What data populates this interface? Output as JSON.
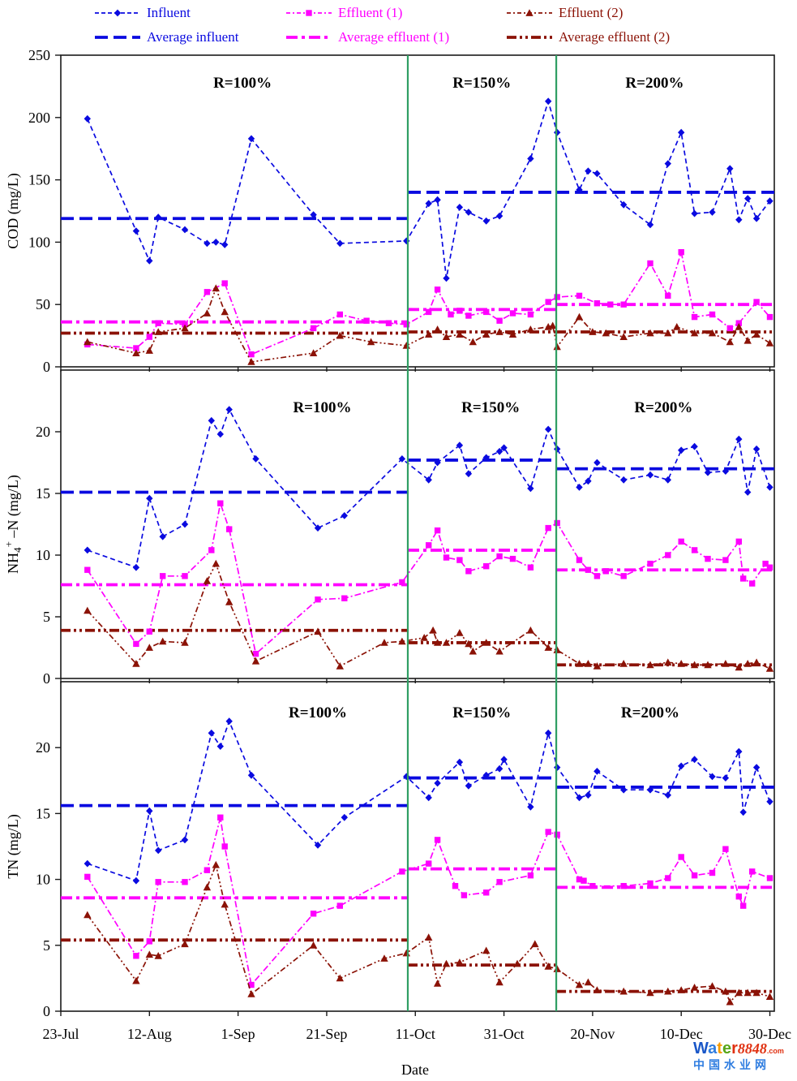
{
  "colors": {
    "influent": "#0a0ae0",
    "effluent1": "#ff00ff",
    "effluent2": "#8b1206",
    "divider": "#2f9e63",
    "frame": "#1a1a1a",
    "watermark_red": "#e03010",
    "watermark_blue": "#2f7de0"
  },
  "legend": {
    "rows": [
      [
        {
          "key": "influent",
          "label": "Influent",
          "marker": "diamond"
        },
        {
          "key": "effluent1",
          "label": "Effluent (1)",
          "marker": "square"
        },
        {
          "key": "effluent2",
          "label": "Effluent (2)",
          "marker": "triangle"
        }
      ],
      [
        {
          "key": "avg_influent",
          "label": "Average influent"
        },
        {
          "key": "avg_effluent1",
          "label": "Average effluent (1)"
        },
        {
          "key": "avg_effluent2",
          "label": "Average effluent (2)"
        }
      ]
    ]
  },
  "x_axis": {
    "label": "Date",
    "tick_labels": [
      "23-Jul",
      "12-Aug",
      "1-Sep",
      "21-Sep",
      "11-Oct",
      "31-Oct",
      "20-Nov",
      "10-Dec",
      "30-Dec"
    ],
    "tick_days": [
      0,
      20,
      40,
      60,
      80,
      100,
      120,
      140,
      160
    ],
    "day_range": [
      0,
      161
    ]
  },
  "regions": {
    "labels": [
      "R=100%",
      "R=150%",
      "R=200%"
    ],
    "divider_days": [
      78.3,
      111.8
    ]
  },
  "chart_data": [
    {
      "type": "line",
      "ylabel": "COD (mg/L)",
      "ylim": [
        0,
        250
      ],
      "yticks": [
        0,
        50,
        100,
        150,
        200,
        250
      ],
      "region_labels": [
        "R=100%",
        "R=150%",
        "R=200%"
      ],
      "region_label_days": [
        41,
        95,
        134
      ],
      "series": [
        {
          "name": "Influent",
          "key": "influent",
          "marker": "diamond",
          "x": [
            6,
            17,
            20,
            22,
            28,
            33,
            35,
            37,
            43,
            57,
            63,
            78,
            83,
            85,
            87,
            90,
            92,
            96,
            99,
            106,
            110,
            112,
            117,
            119,
            121,
            127,
            133,
            137,
            140,
            143,
            147,
            151,
            153,
            155,
            157,
            160
          ],
          "y": [
            199,
            109,
            85,
            120,
            110,
            99,
            100,
            98,
            183,
            122,
            99,
            101,
            131,
            134,
            71,
            128,
            124,
            117,
            121,
            167,
            213,
            188,
            142,
            157,
            155,
            130,
            114,
            163,
            188,
            123,
            124,
            159,
            118,
            135,
            119,
            133
          ]
        },
        {
          "name": "Effluent (1)",
          "key": "effluent1",
          "marker": "square",
          "x": [
            6,
            17,
            20,
            22,
            28,
            33,
            37,
            43,
            57,
            63,
            69,
            74,
            78,
            83,
            85,
            88,
            90,
            92,
            96,
            99,
            102,
            106,
            110,
            112,
            117,
            121,
            124,
            127,
            133,
            137,
            140,
            143,
            147,
            151,
            153,
            157,
            160
          ],
          "y": [
            18,
            15,
            24,
            35,
            34,
            60,
            67,
            10,
            31,
            42,
            37,
            35,
            34,
            44,
            62,
            42,
            45,
            41,
            44,
            37,
            43,
            42,
            52,
            56,
            57,
            51,
            50,
            50,
            83,
            57,
            92,
            40,
            42,
            31,
            35,
            52,
            40
          ]
        },
        {
          "name": "Effluent (2)",
          "key": "effluent2",
          "marker": "triangle",
          "x": [
            6,
            17,
            20,
            22,
            28,
            33,
            35,
            37,
            43,
            57,
            63,
            70,
            78,
            83,
            85,
            87,
            90,
            93,
            96,
            99,
            102,
            106,
            110,
            111,
            112,
            117,
            120,
            123,
            127,
            133,
            137,
            139,
            143,
            147,
            151,
            153,
            155,
            157,
            160
          ],
          "y": [
            20,
            11,
            13,
            28,
            31,
            43,
            63,
            44,
            4,
            11,
            25,
            20,
            17,
            26,
            30,
            24,
            26,
            20,
            26,
            28,
            26,
            30,
            32,
            33,
            16,
            40,
            28,
            27,
            24,
            27,
            27,
            32,
            27,
            27,
            20,
            32,
            21,
            26,
            19
          ]
        },
        {
          "name": "Average influent",
          "key": "avg_influent",
          "avg_by_region": [
            119,
            140,
            140
          ]
        },
        {
          "name": "Average effluent (1)",
          "key": "avg_effluent1",
          "avg_by_region": [
            36,
            46,
            50
          ]
        },
        {
          "name": "Average effluent (2)",
          "key": "avg_effluent2",
          "avg_by_region": [
            27,
            28,
            28
          ]
        }
      ]
    },
    {
      "type": "line",
      "ylabel": "NH₄⁺ –N (mg/L)",
      "ylim": [
        0,
        25
      ],
      "yticks": [
        0,
        5,
        10,
        15,
        20
      ],
      "region_labels": [
        "R=100%",
        "R=150%",
        "R=200%"
      ],
      "region_label_days": [
        59,
        97,
        136
      ],
      "series": [
        {
          "name": "Influent",
          "key": "influent",
          "marker": "diamond",
          "x": [
            6,
            17,
            20,
            23,
            28,
            34,
            36,
            38,
            44,
            58,
            64,
            77,
            83,
            85,
            90,
            92,
            96,
            99,
            100,
            106,
            110,
            112,
            117,
            119,
            121,
            127,
            133,
            137,
            140,
            143,
            146,
            150,
            153,
            155,
            157,
            160
          ],
          "y": [
            10.4,
            9.0,
            14.6,
            11.5,
            12.5,
            20.9,
            19.8,
            21.8,
            17.8,
            12.2,
            13.2,
            17.8,
            16.1,
            17.5,
            18.9,
            16.6,
            17.9,
            18.4,
            18.7,
            15.4,
            20.2,
            18.6,
            15.5,
            16.0,
            17.5,
            16.1,
            16.5,
            16.1,
            18.5,
            18.8,
            16.7,
            16.8,
            19.4,
            15.1,
            18.6,
            15.5
          ]
        },
        {
          "name": "Effluent (1)",
          "key": "effluent1",
          "marker": "square",
          "x": [
            6,
            17,
            20,
            23,
            28,
            34,
            36,
            38,
            44,
            58,
            64,
            77,
            83,
            85,
            87,
            90,
            92,
            96,
            99,
            102,
            106,
            110,
            112,
            117,
            119,
            121,
            123,
            127,
            133,
            137,
            140,
            143,
            146,
            150,
            153,
            154,
            156,
            159,
            160
          ],
          "y": [
            8.8,
            2.8,
            3.8,
            8.3,
            8.3,
            10.4,
            14.2,
            12.1,
            2.0,
            6.4,
            6.5,
            7.8,
            10.8,
            12.0,
            9.8,
            9.6,
            8.7,
            9.1,
            9.9,
            9.7,
            9.0,
            12.2,
            12.6,
            9.6,
            8.8,
            8.3,
            8.7,
            8.3,
            9.3,
            10.0,
            11.1,
            10.4,
            9.7,
            9.6,
            11.1,
            8.1,
            7.7,
            9.3,
            9.0
          ]
        },
        {
          "name": "Effluent (2)",
          "key": "effluent2",
          "marker": "triangle",
          "x": [
            6,
            17,
            20,
            23,
            28,
            33,
            35,
            38,
            44,
            58,
            63,
            73,
            77,
            82,
            84,
            85,
            87,
            90,
            92,
            93,
            96,
            99,
            106,
            110,
            112,
            117,
            119,
            121,
            127,
            133,
            137,
            140,
            143,
            146,
            150,
            153,
            155,
            157,
            160
          ],
          "y": [
            5.5,
            1.2,
            2.5,
            3.0,
            2.9,
            7.9,
            9.3,
            6.2,
            1.4,
            3.8,
            1.0,
            2.9,
            3.0,
            3.3,
            3.9,
            2.9,
            2.9,
            3.7,
            2.8,
            2.2,
            2.9,
            2.2,
            3.9,
            2.5,
            2.3,
            1.2,
            1.2,
            1.0,
            1.2,
            1.1,
            1.3,
            1.2,
            1.1,
            1.1,
            1.2,
            0.9,
            1.2,
            1.3,
            0.8
          ]
        },
        {
          "name": "Average influent",
          "key": "avg_influent",
          "avg_by_region": [
            15.1,
            17.7,
            17.0
          ]
        },
        {
          "name": "Average effluent (1)",
          "key": "avg_effluent1",
          "avg_by_region": [
            7.6,
            10.4,
            8.8
          ]
        },
        {
          "name": "Average effluent (2)",
          "key": "avg_effluent2",
          "avg_by_region": [
            3.9,
            2.9,
            1.1
          ]
        }
      ]
    },
    {
      "type": "line",
      "ylabel": "TN (mg/L)",
      "ylim": [
        0,
        25
      ],
      "yticks": [
        0,
        5,
        10,
        15,
        20
      ],
      "region_labels": [
        "R=100%",
        "R=150%",
        "R=200%"
      ],
      "region_label_days": [
        58,
        95,
        133
      ],
      "series": [
        {
          "name": "Influent",
          "key": "influent",
          "marker": "diamond",
          "x": [
            6,
            17,
            20,
            22,
            28,
            34,
            36,
            38,
            43,
            58,
            64,
            78,
            83,
            85,
            90,
            92,
            96,
            99,
            100,
            106,
            110,
            112,
            117,
            119,
            121,
            127,
            133,
            137,
            140,
            143,
            147,
            150,
            153,
            154,
            157,
            160
          ],
          "y": [
            11.2,
            9.9,
            15.2,
            12.2,
            13.0,
            21.1,
            20.1,
            22.0,
            17.9,
            12.6,
            14.7,
            17.8,
            16.2,
            17.3,
            18.9,
            17.1,
            17.9,
            18.4,
            19.1,
            15.5,
            21.1,
            18.5,
            16.2,
            16.4,
            18.2,
            16.8,
            16.8,
            16.4,
            18.6,
            19.1,
            17.8,
            17.7,
            19.7,
            15.1,
            18.5,
            15.9
          ]
        },
        {
          "name": "Effluent (1)",
          "key": "effluent1",
          "marker": "square",
          "x": [
            6,
            17,
            20,
            22,
            28,
            33,
            36,
            37,
            43,
            57,
            63,
            77,
            83,
            85,
            89,
            91,
            96,
            99,
            106,
            110,
            112,
            117,
            118,
            120,
            127,
            133,
            137,
            140,
            143,
            147,
            150,
            153,
            154,
            156,
            160
          ],
          "y": [
            10.2,
            4.2,
            5.3,
            9.8,
            9.8,
            10.7,
            14.7,
            12.5,
            2.0,
            7.4,
            8.0,
            10.6,
            11.2,
            13.0,
            9.5,
            8.8,
            9.0,
            9.8,
            10.3,
            13.6,
            13.4,
            10.0,
            9.9,
            9.5,
            9.5,
            9.7,
            10.1,
            11.7,
            10.3,
            10.5,
            12.3,
            8.7,
            8.0,
            10.6,
            10.1
          ]
        },
        {
          "name": "Effluent (2)",
          "key": "effluent2",
          "marker": "triangle",
          "x": [
            6,
            17,
            20,
            22,
            28,
            33,
            35,
            37,
            43,
            57,
            63,
            73,
            78,
            83,
            85,
            87,
            90,
            96,
            99,
            103,
            107,
            110,
            112,
            117,
            119,
            121,
            127,
            133,
            137,
            140,
            143,
            147,
            150,
            151,
            153,
            155,
            157,
            160
          ],
          "y": [
            7.3,
            2.3,
            4.3,
            4.2,
            5.1,
            9.4,
            11.1,
            8.1,
            1.3,
            5.0,
            2.5,
            4.0,
            4.4,
            5.6,
            2.1,
            3.6,
            3.7,
            4.6,
            2.2,
            3.6,
            5.1,
            3.4,
            3.2,
            2.0,
            2.2,
            1.6,
            1.5,
            1.4,
            1.5,
            1.6,
            1.8,
            1.9,
            1.5,
            0.7,
            1.4,
            1.4,
            1.4,
            1.1
          ]
        },
        {
          "name": "Average influent",
          "key": "avg_influent",
          "avg_by_region": [
            15.6,
            17.7,
            17.0
          ]
        },
        {
          "name": "Average effluent (1)",
          "key": "avg_effluent1",
          "avg_by_region": [
            8.6,
            10.8,
            9.4
          ]
        },
        {
          "name": "Average effluent (2)",
          "key": "avg_effluent2",
          "avg_by_region": [
            5.4,
            3.5,
            1.5
          ]
        }
      ]
    }
  ],
  "watermark": {
    "brand_letters": [
      {
        "ch": "W",
        "color": "#1a57c8"
      },
      {
        "ch": "a",
        "color": "#2f7de0"
      },
      {
        "ch": "t",
        "color": "#f59b00"
      },
      {
        "ch": "e",
        "color": "#58a618"
      },
      {
        "ch": "r",
        "color": "#e03010"
      }
    ],
    "number": "8848",
    "suffix": ".com",
    "line2": "中国水业网"
  }
}
